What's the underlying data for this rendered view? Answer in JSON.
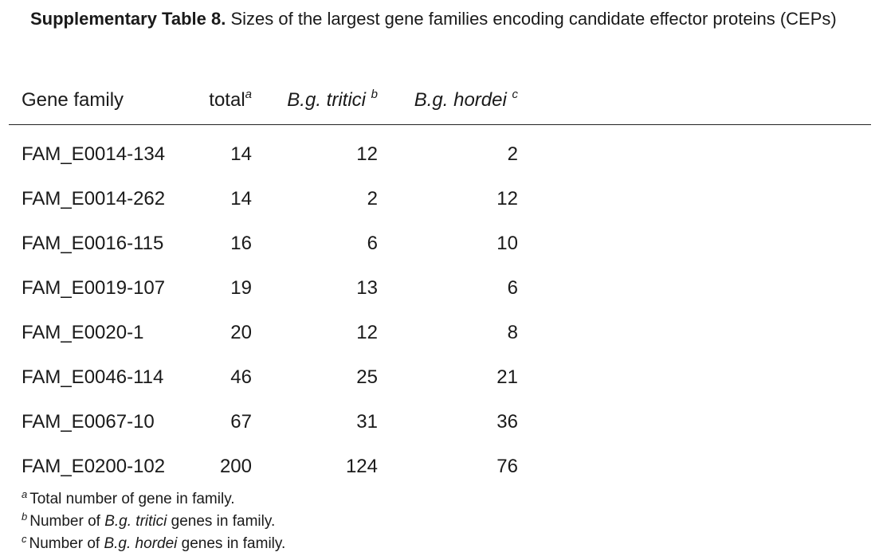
{
  "caption": {
    "label": "Supplementary Table 8.",
    "text": "Sizes of the largest gene families encoding candidate effector proteins (CEPs)"
  },
  "header": {
    "gene_family": "Gene family",
    "total": "total",
    "total_sup": "a",
    "tritici": "B.g. tritici",
    "tritici_sup": "b",
    "hordei": "B.g. hordei",
    "hordei_sup": "c"
  },
  "rows": [
    {
      "family": "FAM_E0014-134",
      "total": "14",
      "tritici": "12",
      "hordei": "2"
    },
    {
      "family": "FAM_E0014-262",
      "total": "14",
      "tritici": "2",
      "hordei": "12"
    },
    {
      "family": "FAM_E0016-115",
      "total": "16",
      "tritici": "6",
      "hordei": "10"
    },
    {
      "family": "FAM_E0019-107",
      "total": "19",
      "tritici": "13",
      "hordei": "6"
    },
    {
      "family": "FAM_E0020-1",
      "total": "20",
      "tritici": "12",
      "hordei": "8"
    },
    {
      "family": "FAM_E0046-114",
      "total": "46",
      "tritici": "25",
      "hordei": "21"
    },
    {
      "family": "FAM_E0067-10",
      "total": "67",
      "tritici": "31",
      "hordei": "36"
    },
    {
      "family": "FAM_E0200-102",
      "total": "200",
      "tritici": "124",
      "hordei": "76"
    }
  ],
  "footnotes": {
    "a": {
      "mark": "a",
      "text": "Total number of gene in family."
    },
    "b": {
      "mark": "b",
      "pre": "Number of ",
      "em": "B.g. tritici",
      "post": " genes in family."
    },
    "c": {
      "mark": "c",
      "pre": "Number of ",
      "em": "B.g. hordei",
      "post": " genes in family."
    }
  }
}
